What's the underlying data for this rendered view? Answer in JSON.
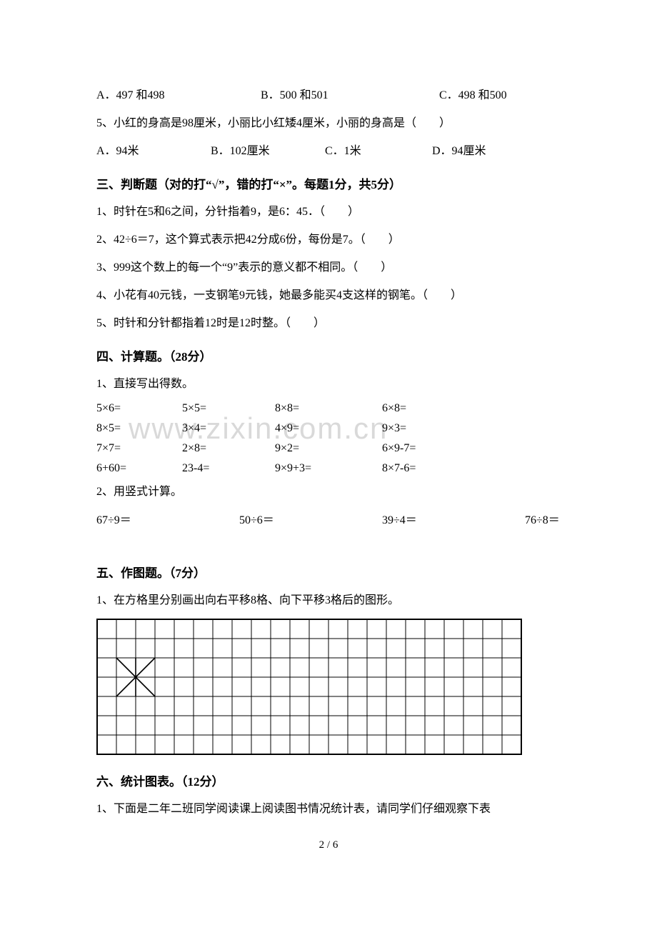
{
  "q4": {
    "options": {
      "a": "A．497 和498",
      "b": "B．500 和501",
      "c": "C．498 和500"
    }
  },
  "q5": {
    "stem": "5、小红的身高是98厘米，小丽比小红矮4厘米，小丽的身高是（　　）",
    "options": {
      "a": "A．94米",
      "b": "B．102厘米",
      "c": "C．1米",
      "d": "D．94厘米"
    }
  },
  "sec3": {
    "heading": "三、判断题（对的打“√”，错的打“×”。每题1分，共5分）",
    "items": [
      "1、时针在5和6之间，分针指着9，是6：45．（　　）",
      "2、42÷6＝7，这个算式表示把42分成6份，每份是7。（　　）",
      "3、999这个数上的每一个“9”表示的意义都不相同。（　　）",
      "4、小花有40元钱，一支钢笔9元钱，她最多能买4支这样的钢笔。（　　）",
      "5、时针和分针都指着12时是12时整。（　　）"
    ]
  },
  "sec4": {
    "heading": "四、计算题。（28分）",
    "sub1_label": "1、直接写出得数。",
    "rows": [
      [
        "5×6=",
        "5×5=",
        "8×8=",
        "6×8="
      ],
      [
        "8×5=",
        "3×4=",
        "4×9=",
        "9×3="
      ],
      [
        "7×7=",
        "2×8=",
        "9×2=",
        "6×9-7="
      ],
      [
        "6+60=",
        "23-4=",
        "9×9+3=",
        "8×7-6="
      ]
    ],
    "sub2_label": "2、用竖式计算。",
    "vertical": [
      "67÷9＝",
      "50÷6＝",
      "39÷4＝",
      "76÷8＝"
    ]
  },
  "sec5": {
    "heading": "五、作图题。（7分）",
    "sub1": "1、在方格里分别画出向右平移8格、向下平移3格后的图形。"
  },
  "sec6": {
    "heading": "六、统计图表。（12分）",
    "sub1": "1、下面是二年二班同学阅读课上阅读图书情况统计表，请同学们仔细观察下表"
  },
  "watermark": "www.zixin.com.cn",
  "page": "2 / 6",
  "grid": {
    "cols": 22,
    "rows": 7,
    "cell": 27,
    "border_color": "#000000",
    "shape_top_row": 2,
    "shape_left_col": 1
  }
}
